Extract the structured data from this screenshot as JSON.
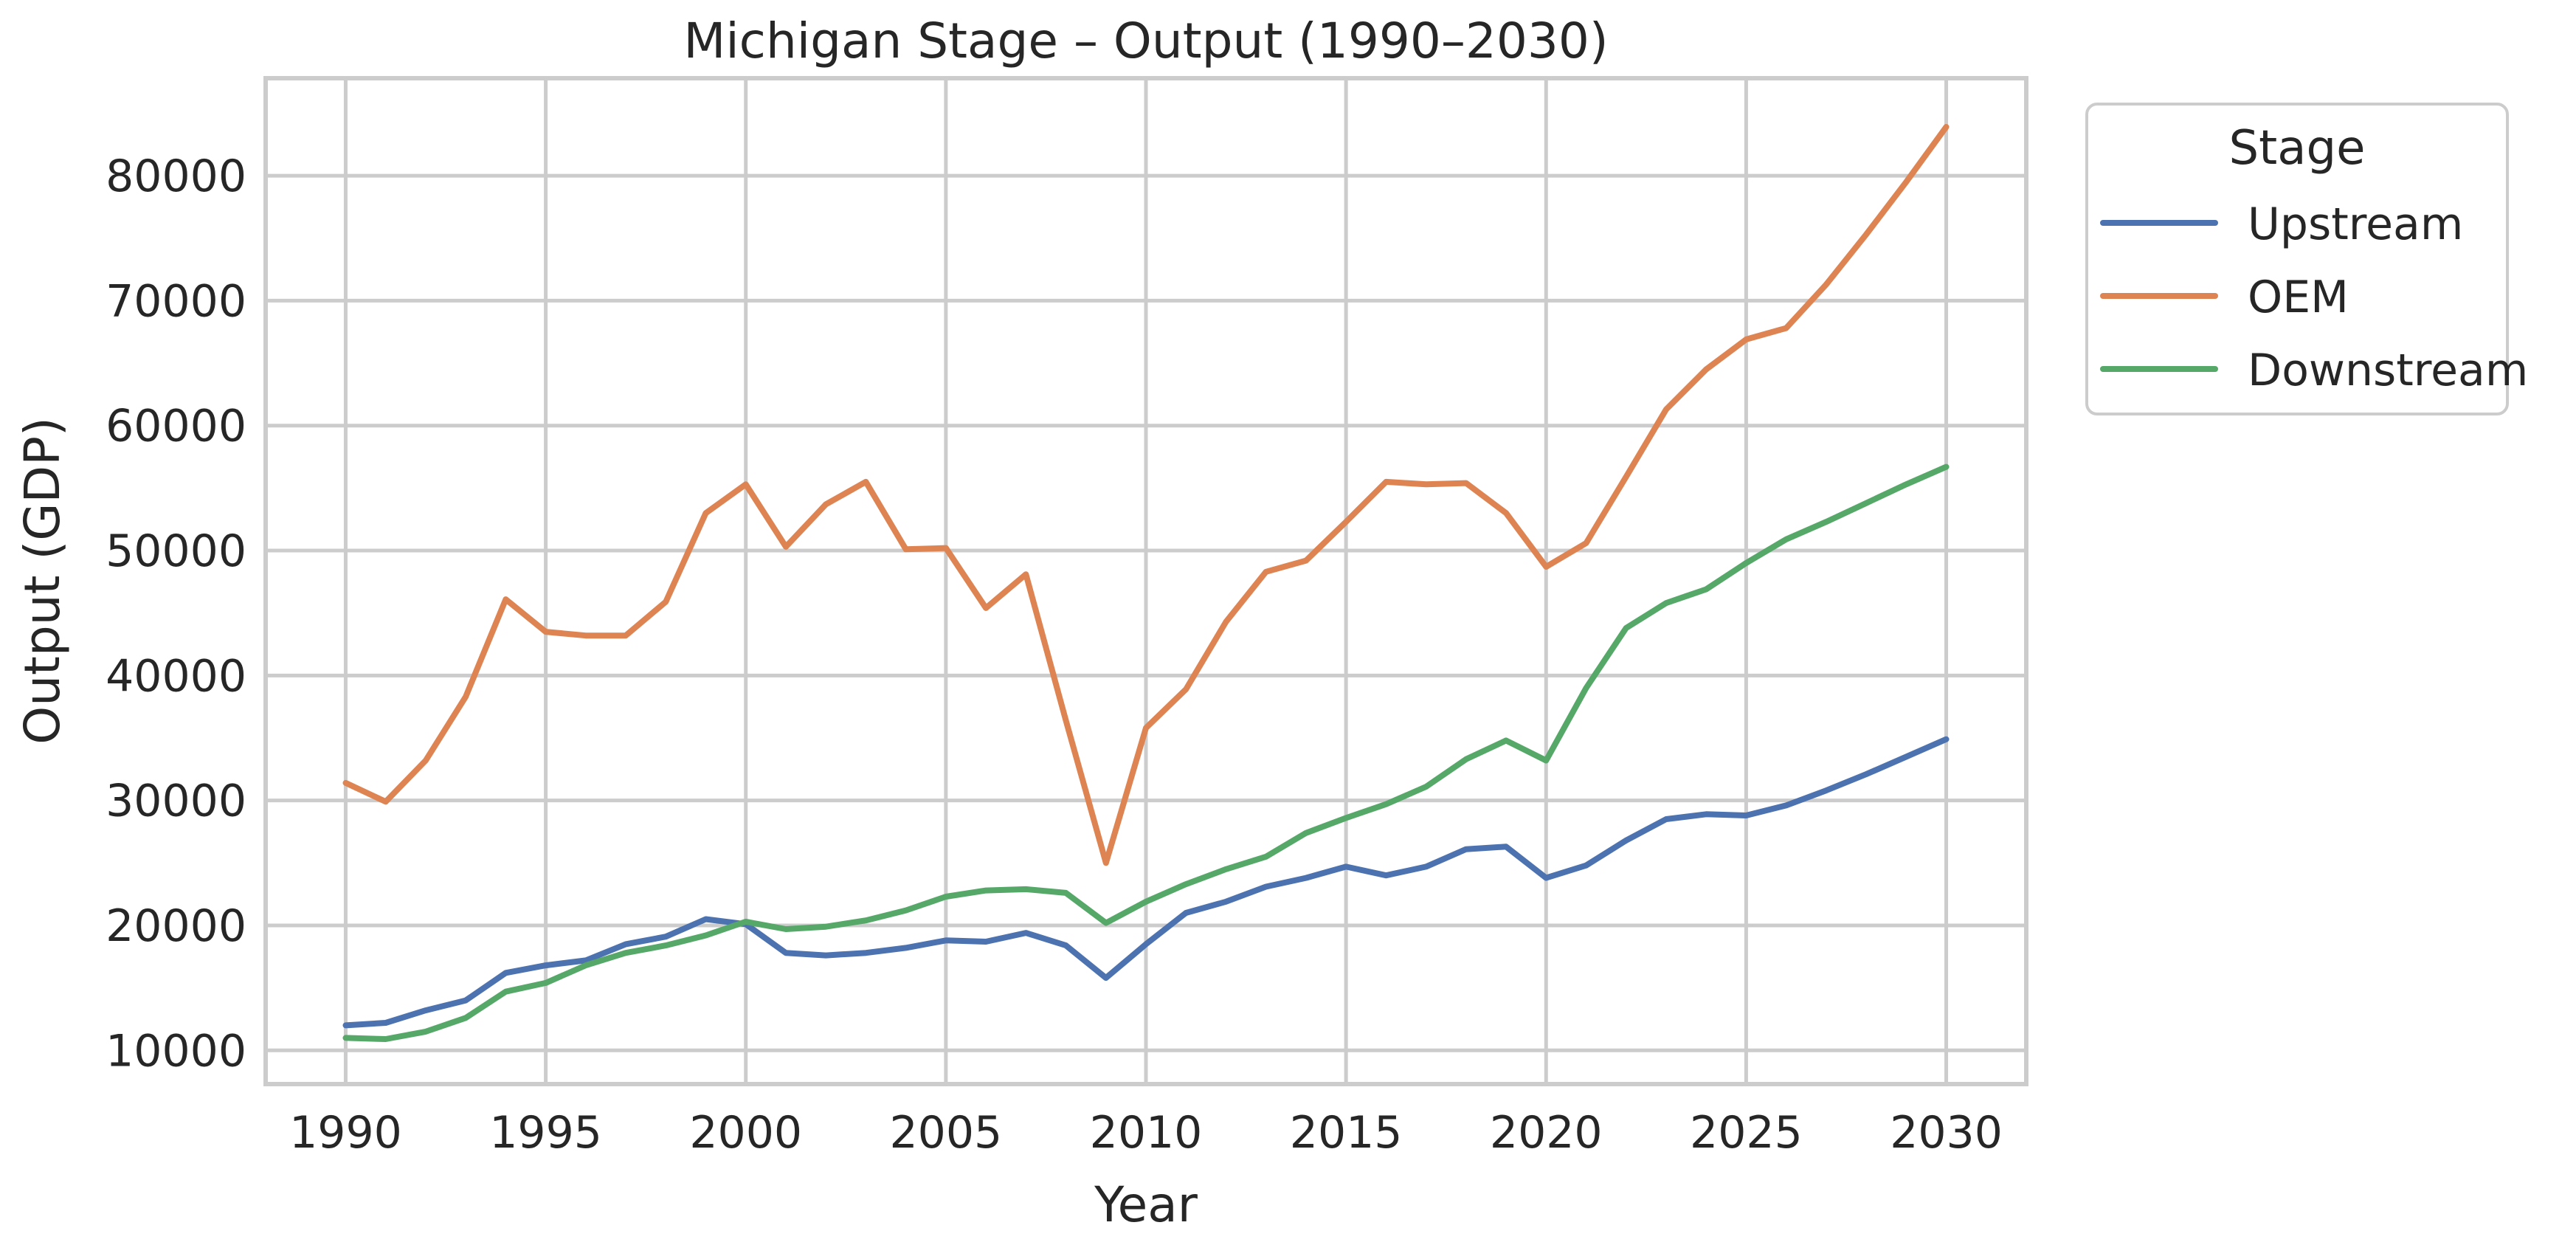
{
  "chart_data": {
    "type": "line",
    "title": "Michigan Stage – Output (1990–2030)",
    "xlabel": "Year",
    "ylabel": "Output (GDP)",
    "xlim": [
      1988,
      2032
    ],
    "ylim": [
      7300,
      87800
    ],
    "xticks": [
      1990,
      1995,
      2000,
      2005,
      2010,
      2015,
      2020,
      2025,
      2030
    ],
    "yticks": [
      10000,
      20000,
      30000,
      40000,
      50000,
      60000,
      70000,
      80000
    ],
    "grid": true,
    "legend": {
      "title": "Stage",
      "placement": "outside-top-right"
    },
    "x": [
      1990,
      1991,
      1992,
      1993,
      1994,
      1995,
      1996,
      1997,
      1998,
      1999,
      2000,
      2001,
      2002,
      2003,
      2004,
      2005,
      2006,
      2007,
      2008,
      2009,
      2010,
      2011,
      2012,
      2013,
      2014,
      2015,
      2016,
      2017,
      2018,
      2019,
      2020,
      2021,
      2022,
      2023,
      2024,
      2025,
      2026,
      2027,
      2028,
      2029,
      2030
    ],
    "series": [
      {
        "name": "Upstream",
        "color": "#4c72b0",
        "values": [
          12000,
          12200,
          13200,
          14000,
          16200,
          16800,
          17200,
          18500,
          19100,
          20500,
          20100,
          17800,
          17600,
          17800,
          18200,
          18800,
          18700,
          19400,
          18400,
          15800,
          18500,
          21000,
          21900,
          23100,
          23800,
          24700,
          24000,
          24700,
          26100,
          26300,
          23800,
          24800,
          26800,
          28500,
          28900,
          28800,
          29600,
          30800,
          32100,
          33500,
          34900
        ]
      },
      {
        "name": "OEM",
        "color": "#dd8452",
        "values": [
          31400,
          29900,
          33200,
          38300,
          46100,
          43500,
          43200,
          43200,
          45900,
          53000,
          55300,
          50300,
          53700,
          55500,
          50100,
          50200,
          45400,
          48100,
          36400,
          25000,
          35800,
          38900,
          44300,
          48300,
          49200,
          52300,
          55500,
          55300,
          55400,
          53000,
          48700,
          50600,
          55900,
          61300,
          64500,
          66900,
          67800,
          71300,
          75300,
          79500,
          83900
        ]
      },
      {
        "name": "Downstream",
        "color": "#55a868",
        "values": [
          11000,
          10900,
          11500,
          12600,
          14700,
          15400,
          16800,
          17800,
          18400,
          19200,
          20300,
          19700,
          19900,
          20400,
          21200,
          22300,
          22800,
          22900,
          22600,
          20200,
          21900,
          23300,
          24500,
          25500,
          27400,
          28600,
          29700,
          31100,
          33300,
          34800,
          33200,
          39000,
          43800,
          45800,
          46900,
          49000,
          50900,
          52300,
          53800,
          55300,
          56700
        ]
      }
    ]
  }
}
